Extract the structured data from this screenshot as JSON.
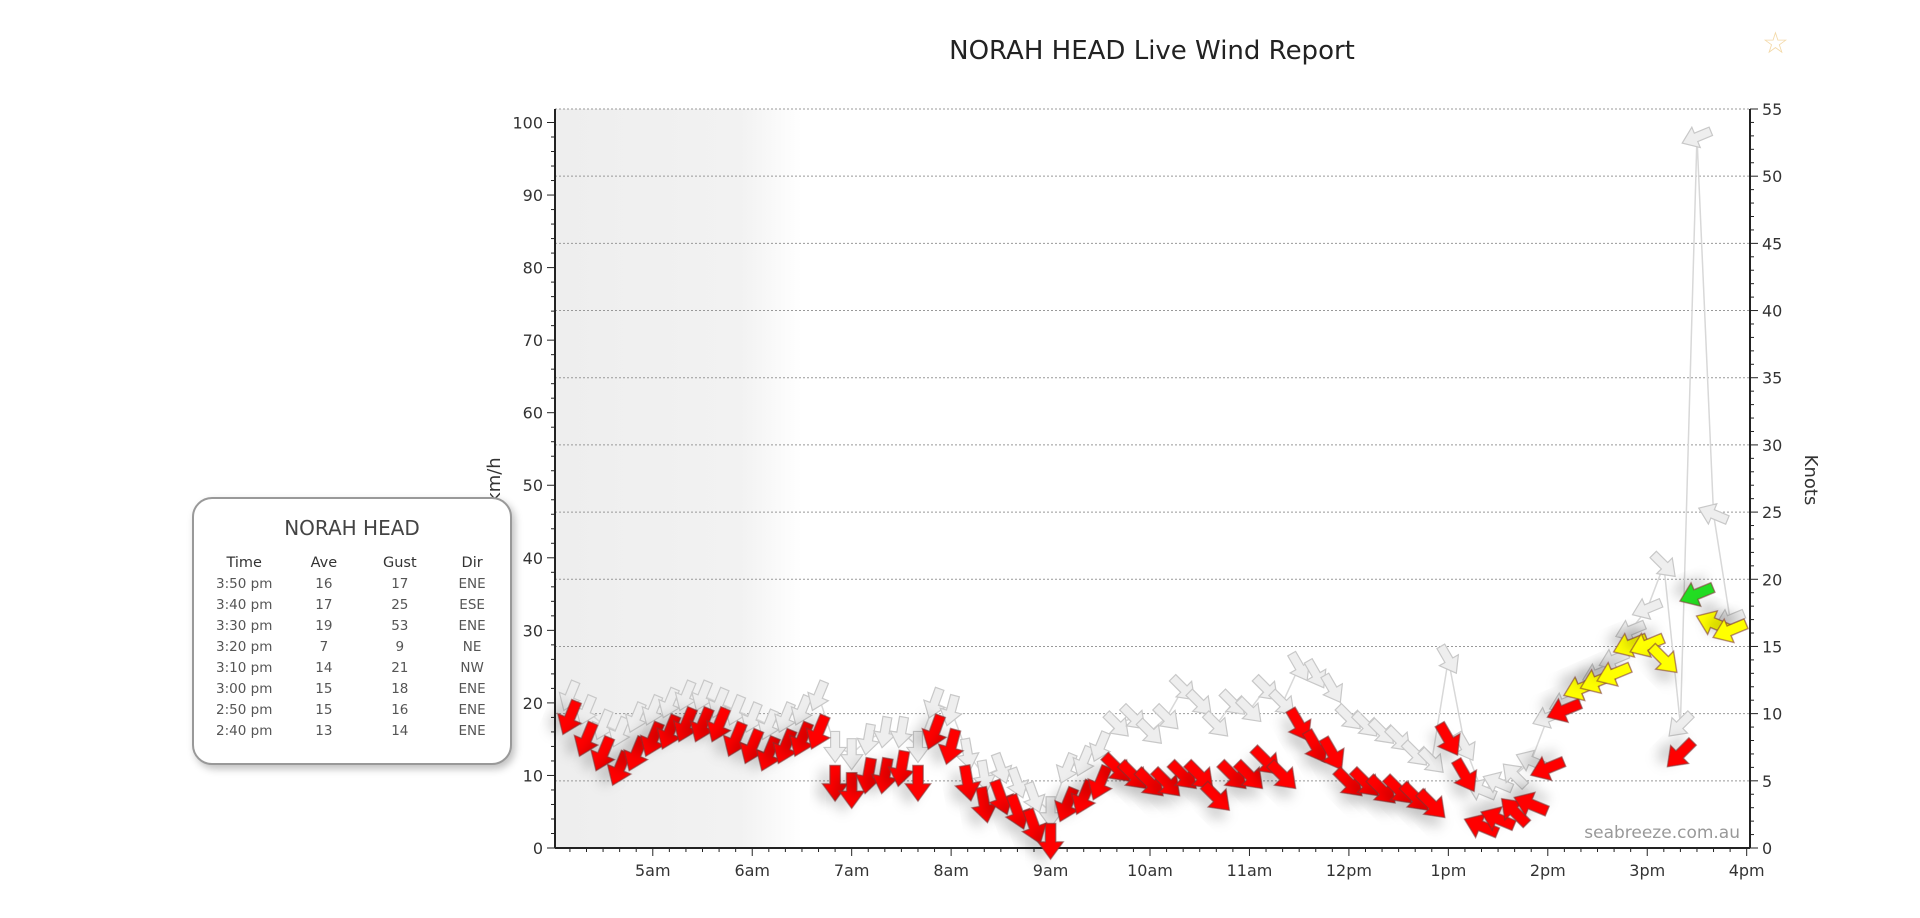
{
  "favorite_icon": "star-outline-icon",
  "chart_data": {
    "type": "scatter",
    "title": "NORAH HEAD Live Wind Report",
    "ylabel": "km/h",
    "y2label": "Knots",
    "ylim": [
      0,
      100
    ],
    "y2lim": [
      0,
      55
    ],
    "yticks": [
      0,
      10,
      20,
      30,
      40,
      50,
      60,
      70,
      80,
      90,
      100
    ],
    "y2ticks": [
      0,
      5,
      10,
      15,
      20,
      25,
      30,
      35,
      40,
      45,
      50,
      55
    ],
    "xticks": [
      "5am",
      "6am",
      "7am",
      "8am",
      "9am",
      "10am",
      "11am",
      "12pm",
      "1pm",
      "2pm",
      "3pm",
      "4pm"
    ],
    "xtick_minutes": [
      300,
      360,
      420,
      480,
      540,
      600,
      660,
      720,
      780,
      840,
      900,
      960
    ],
    "xlim_minutes": [
      241,
      962
    ],
    "night_shade_end_minutes": 390,
    "grid": true,
    "watermark": "seabreeze.com.au",
    "colors": {
      "red": "#ff0000",
      "yellow": "#ffff00",
      "green": "#22dd22",
      "gust": "#eeeeee"
    },
    "color_thresholds_kmh": {
      "yellow": 20,
      "green": 34
    },
    "x_minutes": [
      250,
      260,
      270,
      280,
      290,
      300,
      310,
      320,
      330,
      340,
      350,
      360,
      370,
      380,
      390,
      400,
      410,
      420,
      430,
      440,
      450,
      460,
      470,
      480,
      490,
      500,
      510,
      520,
      530,
      540,
      550,
      560,
      570,
      580,
      590,
      600,
      610,
      620,
      630,
      640,
      650,
      660,
      670,
      680,
      690,
      700,
      710,
      720,
      730,
      740,
      750,
      760,
      770,
      780,
      790,
      800,
      810,
      820,
      830,
      840,
      850,
      860,
      870,
      880,
      890,
      900,
      910,
      920,
      930,
      940,
      950
    ],
    "series": [
      {
        "name": "Average",
        "values": [
          18,
          15,
          13,
          11,
          13,
          15,
          16,
          17,
          17,
          17,
          15,
          14,
          13,
          14,
          15,
          16,
          9,
          8,
          10,
          10,
          11,
          9,
          16,
          14,
          9,
          6,
          7,
          5,
          3,
          1,
          6,
          7,
          9,
          11,
          10,
          9,
          9,
          10,
          10,
          7,
          10,
          10,
          12,
          10,
          17,
          14,
          13,
          9,
          9,
          8,
          8,
          7,
          6,
          15,
          10,
          3,
          4,
          5,
          6,
          11,
          19,
          22,
          23,
          24,
          28,
          28,
          26,
          13,
          35,
          31,
          30
        ]
      },
      {
        "name": "Gust",
        "values": [
          21,
          19,
          17,
          16,
          18,
          19,
          20,
          21,
          21,
          20,
          19,
          18,
          17,
          18,
          19,
          21,
          14,
          13,
          15,
          16,
          16,
          14,
          20,
          19,
          13,
          10,
          11,
          9,
          7,
          5,
          11,
          12,
          14,
          17,
          18,
          16,
          18,
          22,
          20,
          17,
          20,
          19,
          22,
          20,
          25,
          24,
          22,
          18,
          17,
          16,
          15,
          13,
          12,
          26,
          14,
          8,
          9,
          10,
          12,
          18,
          20,
          22,
          24,
          26,
          30,
          33,
          39,
          17,
          98,
          46,
          31.5
        ]
      }
    ],
    "dir_deg": [
      22.5,
      22.5,
      22.5,
      22.5,
      22.5,
      22.5,
      22.5,
      22.5,
      22.5,
      22.5,
      22.5,
      22.5,
      22.5,
      22.5,
      22.5,
      22.5,
      0,
      0,
      10,
      10,
      10,
      0,
      20,
      15,
      350,
      350,
      340,
      340,
      340,
      0,
      22.5,
      22.5,
      22.5,
      315,
      315,
      315,
      315,
      315,
      315,
      315,
      315,
      315,
      315,
      315,
      330,
      330,
      330,
      315,
      315,
      315,
      315,
      315,
      315,
      330,
      330,
      112.5,
      112.5,
      135,
      112.5,
      67.5,
      67.5,
      67.5,
      67.5,
      67.5,
      67.5,
      67.5,
      315,
      45,
      67.5,
      112.5,
      67.5
    ]
  },
  "tooltip": {
    "title": "NORAH HEAD",
    "headers": [
      "Time",
      "Ave",
      "Gust",
      "Dir"
    ],
    "rows": [
      [
        "3:50 pm",
        "16",
        "17",
        "ENE"
      ],
      [
        "3:40 pm",
        "17",
        "25",
        "ESE"
      ],
      [
        "3:30 pm",
        "19",
        "53",
        "ENE"
      ],
      [
        "3:20 pm",
        "7",
        "9",
        "NE"
      ],
      [
        "3:10 pm",
        "14",
        "21",
        "NW"
      ],
      [
        "3:00 pm",
        "15",
        "18",
        "ENE"
      ],
      [
        "2:50 pm",
        "15",
        "16",
        "ENE"
      ],
      [
        "2:40 pm",
        "13",
        "14",
        "ENE"
      ]
    ]
  }
}
